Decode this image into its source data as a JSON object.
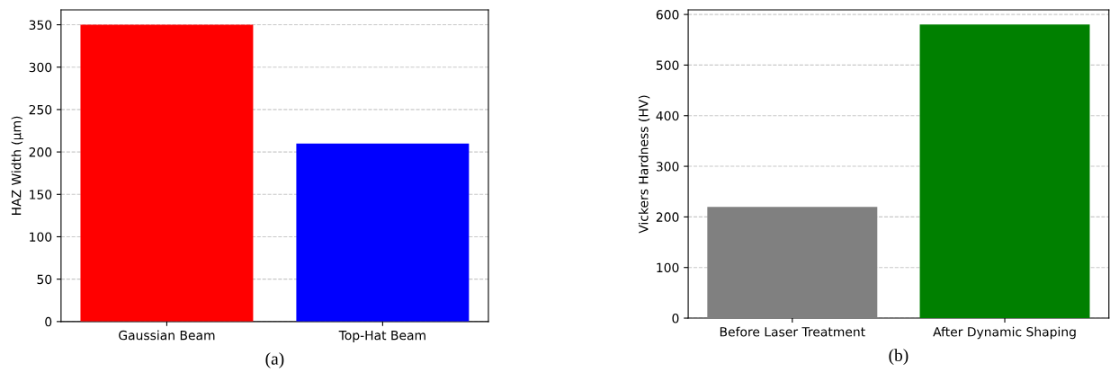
{
  "chart_data": [
    {
      "type": "bar",
      "xlabel": "(a)",
      "ylabel": "HAZ Width (µm)",
      "categories": [
        "Gaussian Beam",
        "Top-Hat Beam"
      ],
      "values": [
        350,
        210
      ],
      "colors": [
        "#ff0000",
        "#0000ff"
      ],
      "ylim": [
        0,
        367.5
      ],
      "yticks": [
        0,
        50,
        100,
        150,
        200,
        250,
        300,
        350
      ],
      "grid": "y"
    },
    {
      "type": "bar",
      "xlabel": "(b)",
      "ylabel": "Vickers Hardness (HV)",
      "categories": [
        "Before Laser Treatment",
        "After Dynamic Shaping"
      ],
      "values": [
        220,
        580
      ],
      "colors": [
        "#808080",
        "#008000"
      ],
      "ylim": [
        0,
        609
      ],
      "yticks": [
        0,
        100,
        200,
        300,
        400,
        500,
        600
      ],
      "grid": "y"
    }
  ]
}
